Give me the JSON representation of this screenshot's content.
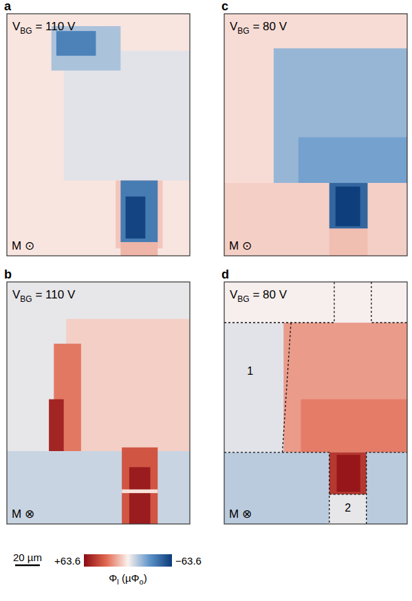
{
  "chart_data": {
    "type": "heatmap",
    "tick_labels": false,
    "xlim": [
      0,
      148
    ],
    "ylim": [
      0,
      196
    ],
    "colorbar": {
      "range": [
        63.6,
        -63.6
      ],
      "ticks": [
        {
          "value": 63.6,
          "label": "+63.6"
        },
        {
          "value": -63.6,
          "label": "−63.6"
        }
      ],
      "label_parts": [
        "Φ",
        "l",
        " (µΦ",
        "o",
        ")"
      ]
    },
    "scale_bar": {
      "value": 20,
      "label": "20 µm"
    },
    "panels": [
      {
        "letter": "a",
        "gate": [
          "V",
          "BG",
          " = 110 V"
        ],
        "magnetization": "M ⊙",
        "regions": [
          {
            "x": [
              0,
              148
            ],
            "y": [
              0,
              196
            ],
            "value": 3
          },
          {
            "x": [
              46,
              148
            ],
            "y": [
              30,
              135
            ],
            "value": -5
          },
          {
            "x": [
              36,
              92
            ],
            "y": [
              10,
              46
            ],
            "value": -16
          },
          {
            "x": [
              40,
              72
            ],
            "y": [
              14,
              34
            ],
            "value": -38
          },
          {
            "x": [
              88,
              126
            ],
            "y": [
              135,
              190
            ],
            "value": 10
          },
          {
            "x": [
              92,
              122
            ],
            "y": [
              135,
              185
            ],
            "value": -40
          },
          {
            "x": [
              96,
              112
            ],
            "y": [
              148,
              182
            ],
            "value": -60
          },
          {
            "x": [
              92,
              122
            ],
            "y": [
              185,
              196
            ],
            "value": 14
          }
        ]
      },
      {
        "letter": "b",
        "gate": [
          "V",
          "BG",
          " = 110 V"
        ],
        "magnetization": "M ⊗",
        "regions": [
          {
            "x": [
              0,
              148
            ],
            "y": [
              0,
              196
            ],
            "value": -4
          },
          {
            "x": [
              48,
              148
            ],
            "y": [
              30,
              137
            ],
            "value": 8
          },
          {
            "x": [
              38,
              60
            ],
            "y": [
              50,
              137
            ],
            "value": 28
          },
          {
            "x": [
              34,
              46
            ],
            "y": [
              95,
              137
            ],
            "value": 55
          },
          {
            "x": [
              0,
              148
            ],
            "y": [
              137,
              196
            ],
            "value": -10
          },
          {
            "x": [
              93,
              122
            ],
            "y": [
              134,
              196
            ],
            "value": 38
          },
          {
            "x": [
              99,
              116
            ],
            "y": [
              150,
              196
            ],
            "value": 58
          },
          {
            "x": [
              93,
              122
            ],
            "y": [
              168,
              171
            ],
            "value": 4
          }
        ]
      },
      {
        "letter": "c",
        "gate": [
          "V",
          "BG",
          " = 80 V"
        ],
        "magnetization": "M ⊙",
        "regions": [
          {
            "x": [
              0,
              148
            ],
            "y": [
              0,
              196
            ],
            "value": 5
          },
          {
            "x": [
              40,
              148
            ],
            "y": [
              28,
              137
            ],
            "value": -20
          },
          {
            "x": [
              60,
              148
            ],
            "y": [
              100,
              137
            ],
            "value": -27
          },
          {
            "x": [
              0,
              148
            ],
            "y": [
              137,
              196
            ],
            "value": 8
          },
          {
            "x": [
              85,
              116
            ],
            "y": [
              137,
              174
            ],
            "value": -48
          },
          {
            "x": [
              90,
              110
            ],
            "y": [
              140,
              172
            ],
            "value": -62
          },
          {
            "x": [
              85,
              116
            ],
            "y": [
              174,
              196
            ],
            "value": 12
          }
        ]
      },
      {
        "letter": "d",
        "gate": [
          "V",
          "BG",
          " = 80 V"
        ],
        "magnetization": "M ⊗",
        "regions": [
          {
            "x": [
              0,
              148
            ],
            "y": [
              0,
              196
            ],
            "value": -5
          },
          {
            "x": [
              0,
              148
            ],
            "y": [
              0,
              33
            ],
            "value": -1
          },
          {
            "x": [
              48,
              148
            ],
            "y": [
              33,
              138
            ],
            "value": 20
          },
          {
            "x": [
              62,
              148
            ],
            "y": [
              95,
              138
            ],
            "value": 27
          },
          {
            "x": [
              0,
              148
            ],
            "y": [
              138,
              196
            ],
            "value": -13
          },
          {
            "x": [
              85,
              115
            ],
            "y": [
              138,
              172
            ],
            "value": 48
          },
          {
            "x": [
              91,
              110
            ],
            "y": [
              140,
              170
            ],
            "value": 60
          },
          {
            "x": [
              85,
              115
            ],
            "y": [
              172,
              196
            ],
            "value": -4
          }
        ],
        "outlines": [
          [
            [
              0,
              33
            ],
            [
              89,
              33
            ],
            [
              89,
              0
            ]
          ],
          [
            [
              119,
              0
            ],
            [
              119,
              33
            ],
            [
              148,
              33
            ]
          ],
          [
            [
              54,
              33
            ],
            [
              47,
              138
            ]
          ],
          [
            [
              0,
              138
            ],
            [
              85,
              138
            ],
            [
              85,
              196
            ]
          ],
          [
            [
              115,
              196
            ],
            [
              115,
              138
            ],
            [
              148,
              138
            ]
          ],
          [
            [
              85,
              172
            ],
            [
              115,
              172
            ]
          ]
        ],
        "labels": [
          {
            "text": "1",
            "x": 21,
            "y": 75
          },
          {
            "text": "2",
            "x": 100,
            "y": 186
          }
        ]
      }
    ]
  }
}
